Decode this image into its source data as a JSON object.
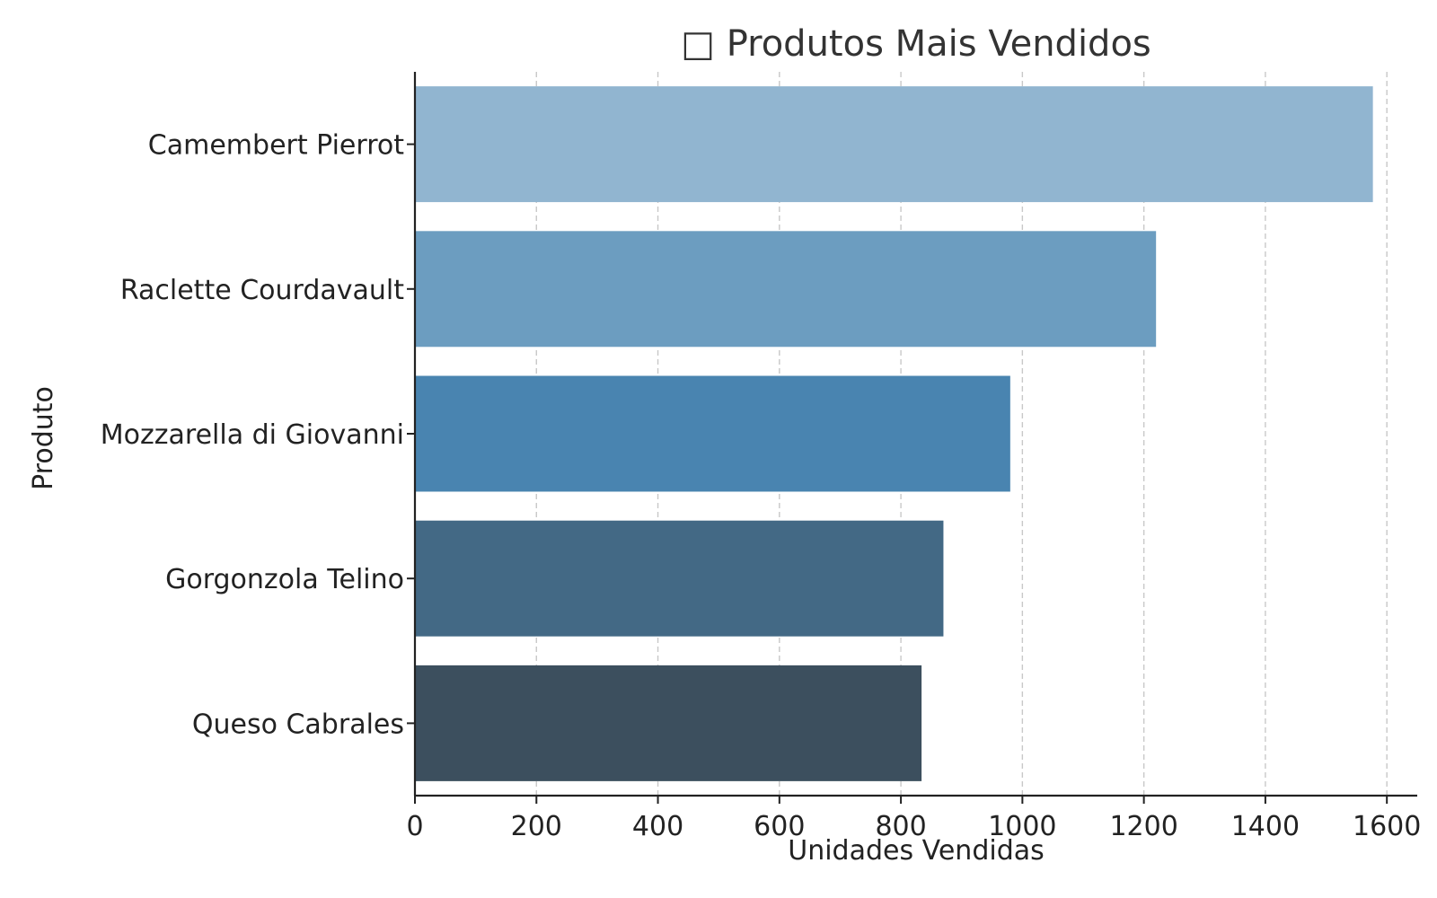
{
  "chart_data": {
    "type": "bar",
    "orientation": "horizontal",
    "title": "□ Produtos Mais Vendidos",
    "xlabel": "Unidades Vendidas",
    "ylabel": "Produto",
    "categories": [
      "Camembert Pierrot",
      "Raclette Courdavault",
      "Mozzarella di Giovanni",
      "Gorgonzola Telino",
      "Queso Cabrales"
    ],
    "values": [
      1577,
      1220,
      980,
      870,
      834
    ],
    "colors": [
      "#91b5d0",
      "#6c9dc0",
      "#4984b0",
      "#436985",
      "#3c4f5e"
    ],
    "xlim": [
      0,
      1650
    ],
    "xticks": [
      "0",
      "200",
      "400",
      "600",
      "800",
      "1000",
      "1200",
      "1400",
      "1600"
    ],
    "grid": "x-dashed",
    "legend": "none"
  }
}
